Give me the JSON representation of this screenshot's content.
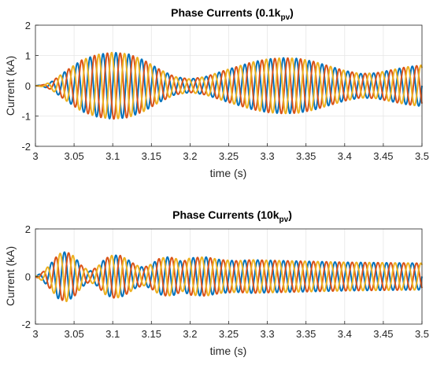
{
  "chart_data": [
    {
      "type": "line",
      "title": "Phase Currents (0.1k",
      "title_sub": "pv",
      "title_end": ")",
      "xlabel": "time (s)",
      "ylabel": "Current (kA)",
      "xlim": [
        3,
        3.5
      ],
      "ylim": [
        -2,
        2
      ],
      "xticks": [
        3,
        3.05,
        3.1,
        3.15,
        3.2,
        3.25,
        3.3,
        3.35,
        3.4,
        3.45,
        3.5
      ],
      "xtick_labels": [
        "3",
        "3.05",
        "3.1",
        "3.15",
        "3.2",
        "3.25",
        "3.3",
        "3.35",
        "3.4",
        "3.45",
        "3.5"
      ],
      "yticks": [
        -2,
        -1,
        0,
        1,
        2
      ],
      "ytick_labels": [
        "-2",
        "-1",
        "0",
        "1",
        "2"
      ],
      "grid": true,
      "frequency_hz": 60,
      "series": [
        {
          "phase_deg": 0,
          "color": "#0072BD"
        },
        {
          "phase_deg": -120,
          "color": "#D95319"
        },
        {
          "phase_deg": 120,
          "color": "#EDB120"
        }
      ],
      "envelope": {
        "t": [
          3.0,
          3.01,
          3.02,
          3.04,
          3.06,
          3.08,
          3.1,
          3.12,
          3.14,
          3.16,
          3.18,
          3.2,
          3.22,
          3.25,
          3.28,
          3.3,
          3.32,
          3.34,
          3.36,
          3.38,
          3.4,
          3.42,
          3.44,
          3.46,
          3.48,
          3.5
        ],
        "amp": [
          0.0,
          0.03,
          0.12,
          0.5,
          0.85,
          1.03,
          1.1,
          1.05,
          0.85,
          0.55,
          0.3,
          0.22,
          0.3,
          0.55,
          0.78,
          0.88,
          0.92,
          0.9,
          0.8,
          0.65,
          0.5,
          0.4,
          0.42,
          0.52,
          0.62,
          0.68
        ]
      }
    },
    {
      "type": "line",
      "title": "Phase Currents (10k",
      "title_sub": "pv",
      "title_end": ")",
      "xlabel": "time (s)",
      "ylabel": "Current (kA)",
      "xlim": [
        3,
        3.5
      ],
      "ylim": [
        -2,
        2
      ],
      "xticks": [
        3,
        3.05,
        3.1,
        3.15,
        3.2,
        3.25,
        3.3,
        3.35,
        3.4,
        3.45,
        3.5
      ],
      "xtick_labels": [
        "3",
        "3.05",
        "3.1",
        "3.15",
        "3.2",
        "3.25",
        "3.3",
        "3.35",
        "3.4",
        "3.45",
        "3.5"
      ],
      "yticks": [
        -2,
        0,
        2
      ],
      "ytick_labels": [
        "-2",
        "0",
        "2"
      ],
      "grid": true,
      "frequency_hz": 60,
      "series": [
        {
          "phase_deg": 0,
          "color": "#0072BD"
        },
        {
          "phase_deg": -120,
          "color": "#D95319"
        },
        {
          "phase_deg": 120,
          "color": "#EDB120"
        }
      ],
      "envelope": {
        "t": [
          3.0,
          3.01,
          3.02,
          3.03,
          3.04,
          3.05,
          3.06,
          3.07,
          3.08,
          3.09,
          3.1,
          3.11,
          3.12,
          3.13,
          3.14,
          3.15,
          3.16,
          3.17,
          3.18,
          3.19,
          3.2,
          3.22,
          3.24,
          3.26,
          3.28,
          3.3,
          3.35,
          3.4,
          3.45,
          3.5
        ],
        "amp": [
          0.0,
          0.2,
          0.55,
          0.95,
          1.05,
          0.85,
          0.45,
          0.22,
          0.4,
          0.75,
          0.9,
          0.88,
          0.7,
          0.48,
          0.38,
          0.52,
          0.75,
          0.82,
          0.78,
          0.62,
          0.78,
          0.82,
          0.7,
          0.66,
          0.7,
          0.68,
          0.64,
          0.6,
          0.58,
          0.56
        ]
      }
    }
  ]
}
